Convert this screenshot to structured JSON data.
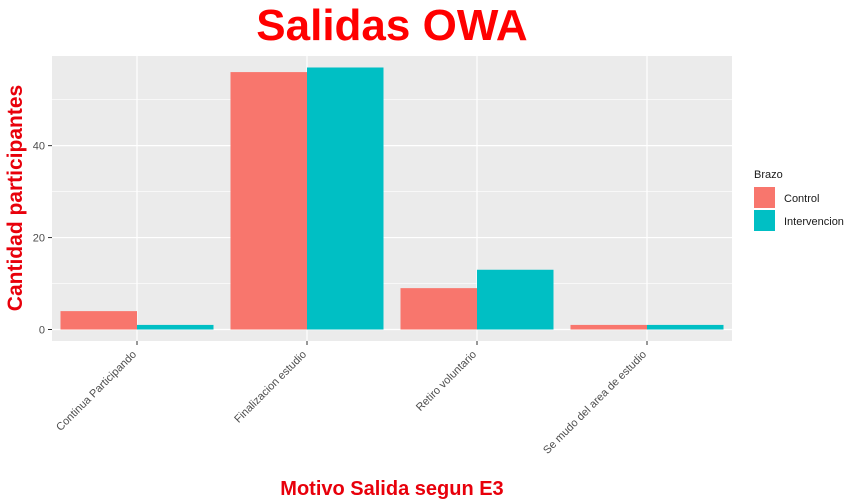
{
  "chart_data": {
    "type": "bar",
    "title": "Salidas OWA",
    "xlabel": "Motivo Salida segun E3",
    "ylabel": "Cantidad participantes",
    "categories": [
      "Continua Participando",
      "Finalizacion estudio",
      "Retiro voluntario",
      "Se mudo del area de estudio"
    ],
    "series": [
      {
        "name": "Control",
        "color": "#F8766D",
        "values": [
          4,
          56,
          9,
          1
        ]
      },
      {
        "name": "Intervencion",
        "color": "#00BFC4",
        "values": [
          1,
          57,
          13,
          1
        ]
      }
    ],
    "ylim": [
      -2.5,
      59.5
    ],
    "yticks": [
      0,
      20,
      40
    ],
    "grid": true,
    "legend": {
      "title": "Brazo",
      "placement": "right"
    },
    "title_color": "#FF0000",
    "axis_label_color": "#E8000B",
    "panel_background": "#EBEBEB"
  }
}
